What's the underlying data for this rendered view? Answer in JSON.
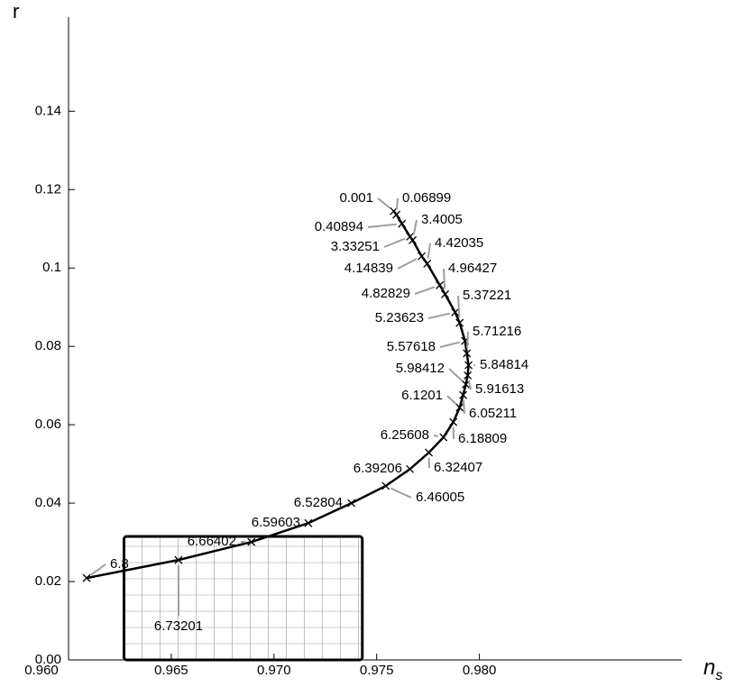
{
  "chart_data": {
    "type": "line",
    "ylabel": "r",
    "xlabel": "n",
    "xlabel_subscript": "s",
    "xlim": [
      0.96,
      0.9895
    ],
    "ylim": [
      0,
      0.164
    ],
    "xticks": [
      {
        "value": 0.96,
        "label": "0.960"
      },
      {
        "value": 0.965,
        "label": "0.965"
      },
      {
        "value": 0.97,
        "label": "0.970"
      },
      {
        "value": 0.975,
        "label": "0.975"
      },
      {
        "value": 0.98,
        "label": "0.980"
      }
    ],
    "yticks": [
      {
        "value": 0,
        "label": "0.00"
      },
      0.02,
      0.04,
      0.06,
      0.08,
      0.1,
      0.12,
      0.14
    ],
    "color": "#000000",
    "label_color": "#9e9e9e",
    "point_labels": [
      "0.001",
      "0.06899",
      "0.40894",
      "3.33251",
      "3.4005",
      "4.14839",
      "4.42035",
      "4.82829",
      "4.96427",
      "5.23623",
      "5.37221",
      "5.57618",
      "5.71216",
      "5.84814",
      "5.91613",
      "5.98412",
      "6.05211",
      "6.1201",
      "6.18809",
      "6.25608",
      "6.32407",
      "6.39206",
      "6.46005",
      "6.52804",
      "6.59603",
      "6.66402",
      "6.73201",
      "6.8"
    ],
    "x": [
      0.97583,
      0.97596,
      0.97623,
      0.97662,
      0.97675,
      0.97719,
      0.97746,
      0.97807,
      0.97833,
      0.97882,
      0.97904,
      0.9793,
      0.97939,
      0.97947,
      0.97943,
      0.97934,
      0.97921,
      0.97904,
      0.97873,
      0.97825,
      0.97754,
      0.97662,
      0.97544,
      0.97377,
      0.97167,
      0.9689,
      0.96535,
      0.96088
    ],
    "values": [
      0.1145,
      0.1136,
      0.1113,
      0.108,
      0.1071,
      0.103,
      0.1011,
      0.0956,
      0.0933,
      0.0887,
      0.086,
      0.0814,
      0.0782,
      0.0752,
      0.0726,
      0.0703,
      0.0676,
      0.0644,
      0.0607,
      0.0568,
      0.0529,
      0.0487,
      0.0444,
      0.04,
      0.0349,
      0.0301,
      0.0255,
      0.0209
    ],
    "region": {
      "xlim": [
        0.9627,
        0.9743
      ],
      "ylim": [
        0,
        0.0315
      ]
    }
  }
}
